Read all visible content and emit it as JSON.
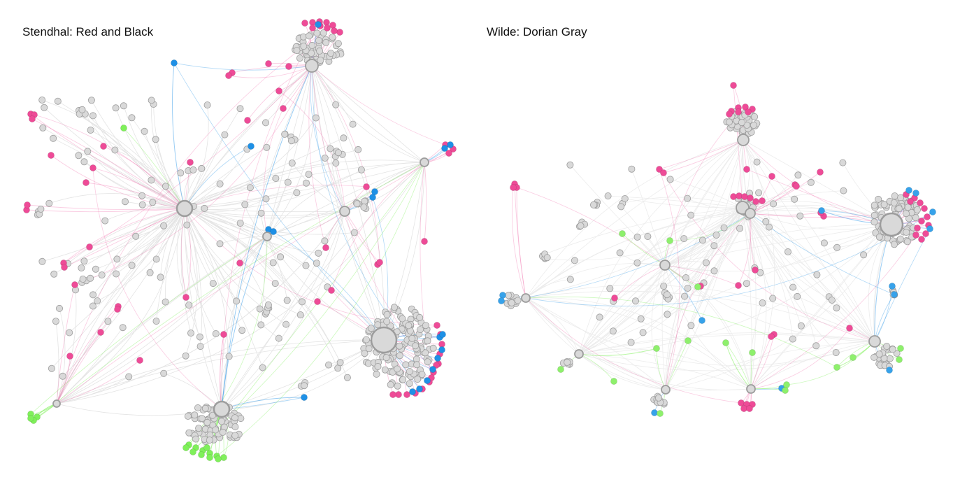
{
  "panels": [
    {
      "title": "Stendhal: Red and Black",
      "seed": 7,
      "colors": {
        "edge": "#e4e4e4",
        "node_fill": "#d9d9d9",
        "node_stroke": "#9d9d9d",
        "pink": "#ee4b97",
        "blue": "#1e90e6",
        "green": "#7ff05a"
      }
    },
    {
      "title": "Wilde: Dorian Gray",
      "seed": 19,
      "colors": {
        "edge": "#ececec",
        "node_fill": "#d9d9d9",
        "node_stroke": "#9d9d9d",
        "pink": "#ee4b97",
        "blue": "#37a2ea",
        "green": "#8ef06c"
      }
    }
  ]
}
